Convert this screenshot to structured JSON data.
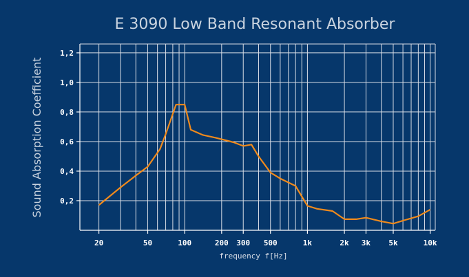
{
  "chart_data": {
    "type": "line",
    "title": "E 3090 Low Band Resonant Absorber",
    "xlabel": "frequency f[Hz]",
    "ylabel": "Sound Absorption Coefficient",
    "x_scale": "log",
    "xlim": [
      14,
      11000
    ],
    "ylim": [
      0,
      1.26
    ],
    "grid": true,
    "x_ticks": [
      {
        "value": 20,
        "label": "20"
      },
      {
        "value": 50,
        "label": "50"
      },
      {
        "value": 100,
        "label": "100"
      },
      {
        "value": 200,
        "label": "200"
      },
      {
        "value": 300,
        "label": "300"
      },
      {
        "value": 500,
        "label": "500"
      },
      {
        "value": 1000,
        "label": "1k"
      },
      {
        "value": 2000,
        "label": "2k"
      },
      {
        "value": 3000,
        "label": "3k"
      },
      {
        "value": 5000,
        "label": "5k"
      },
      {
        "value": 10000,
        "label": "10k"
      }
    ],
    "y_ticks": [
      {
        "value": 0.2,
        "label": "0,2"
      },
      {
        "value": 0.4,
        "label": "0,4"
      },
      {
        "value": 0.6,
        "label": "0,6"
      },
      {
        "value": 0.8,
        "label": "0,8"
      },
      {
        "value": 1.0,
        "label": "1,0"
      },
      {
        "value": 1.2,
        "label": "1,2"
      }
    ],
    "series": [
      {
        "color": "#f08a1c",
        "x": [
          20,
          30,
          40,
          50,
          63,
          70,
          85,
          100,
          112,
          140,
          180,
          250,
          300,
          350,
          400,
          500,
          600,
          800,
          1000,
          1200,
          1600,
          2000,
          2500,
          3000,
          4000,
          5000,
          6000,
          8000,
          10000
        ],
        "y": [
          0.17,
          0.29,
          0.37,
          0.43,
          0.55,
          0.65,
          0.85,
          0.85,
          0.68,
          0.645,
          0.625,
          0.595,
          0.57,
          0.58,
          0.5,
          0.39,
          0.35,
          0.3,
          0.165,
          0.145,
          0.13,
          0.075,
          0.075,
          0.085,
          0.06,
          0.045,
          0.065,
          0.095,
          0.14
        ]
      }
    ]
  }
}
